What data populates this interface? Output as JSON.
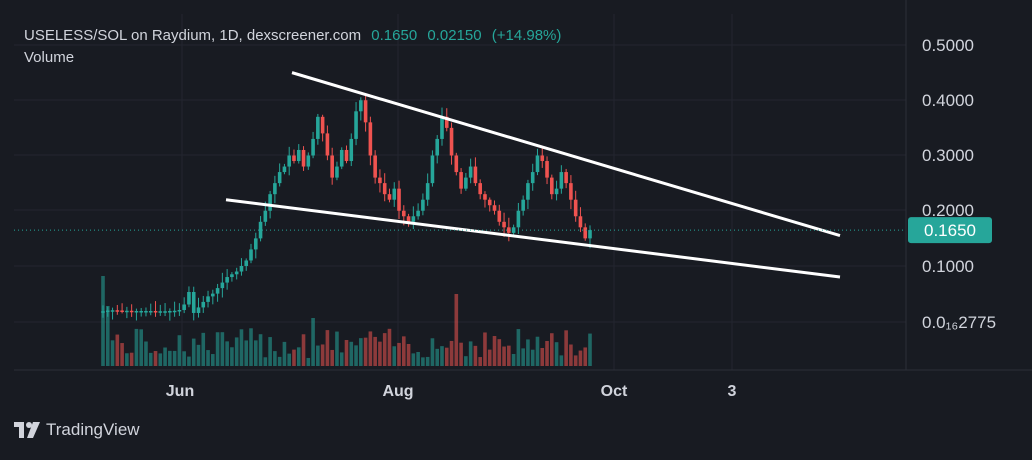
{
  "header": {
    "pair": "USELESS/SOL on Raydium, 1D, dexscreener.com",
    "price": "0.1650",
    "change": "0.02150",
    "change_pct": "(+14.98%)",
    "volume_label": "Volume"
  },
  "price_badge": "0.1650",
  "brand": "TradingView",
  "colors": {
    "up": "#26a69a",
    "down": "#ef5350",
    "background": "#181b22",
    "badge": "#26a69a"
  },
  "chart_data": {
    "type": "candlestick",
    "interval": "1D",
    "x_ticks": [
      "Jun",
      "Aug",
      "Oct",
      "3"
    ],
    "y_ticks": [
      "0.5000",
      "0.4000",
      "0.3000",
      "0.2000",
      "0.1000",
      "0.0₁₆2775"
    ],
    "ylim": [
      0,
      0.5
    ],
    "last_price": 0.165,
    "approx_close_series": [
      0.0003,
      0.0006,
      0.0007,
      0.0006,
      0.0005,
      0.0005,
      0.0004,
      0.0004,
      0.0004,
      0.0004,
      0.0004,
      0.0003,
      0.0003,
      0.0003,
      0.0004,
      0.0005,
      0.0008,
      0.003,
      0.008,
      0.015,
      0.025,
      0.035,
      0.045,
      0.05,
      0.06,
      0.07,
      0.08,
      0.085,
      0.09,
      0.1,
      0.11,
      0.13,
      0.15,
      0.18,
      0.2,
      0.23,
      0.25,
      0.27,
      0.28,
      0.3,
      0.29,
      0.31,
      0.28,
      0.3,
      0.33,
      0.37,
      0.34,
      0.3,
      0.26,
      0.28,
      0.31,
      0.29,
      0.33,
      0.38,
      0.4,
      0.36,
      0.3,
      0.26,
      0.25,
      0.23,
      0.22,
      0.24,
      0.2,
      0.19,
      0.18,
      0.19,
      0.2,
      0.22,
      0.25,
      0.3,
      0.33,
      0.37,
      0.35,
      0.3,
      0.27,
      0.24,
      0.26,
      0.28,
      0.25,
      0.23,
      0.22,
      0.21,
      0.2,
      0.18,
      0.17,
      0.16,
      0.17,
      0.2,
      0.22,
      0.25,
      0.27,
      0.3,
      0.29,
      0.26,
      0.23,
      0.24,
      0.27,
      0.25,
      0.22,
      0.19,
      0.17,
      0.15,
      0.165
    ],
    "trendlines": [
      {
        "name": "upper",
        "from": 0.45,
        "to": 0.155
      },
      {
        "name": "lower",
        "from": 0.22,
        "to": 0.08
      }
    ]
  }
}
